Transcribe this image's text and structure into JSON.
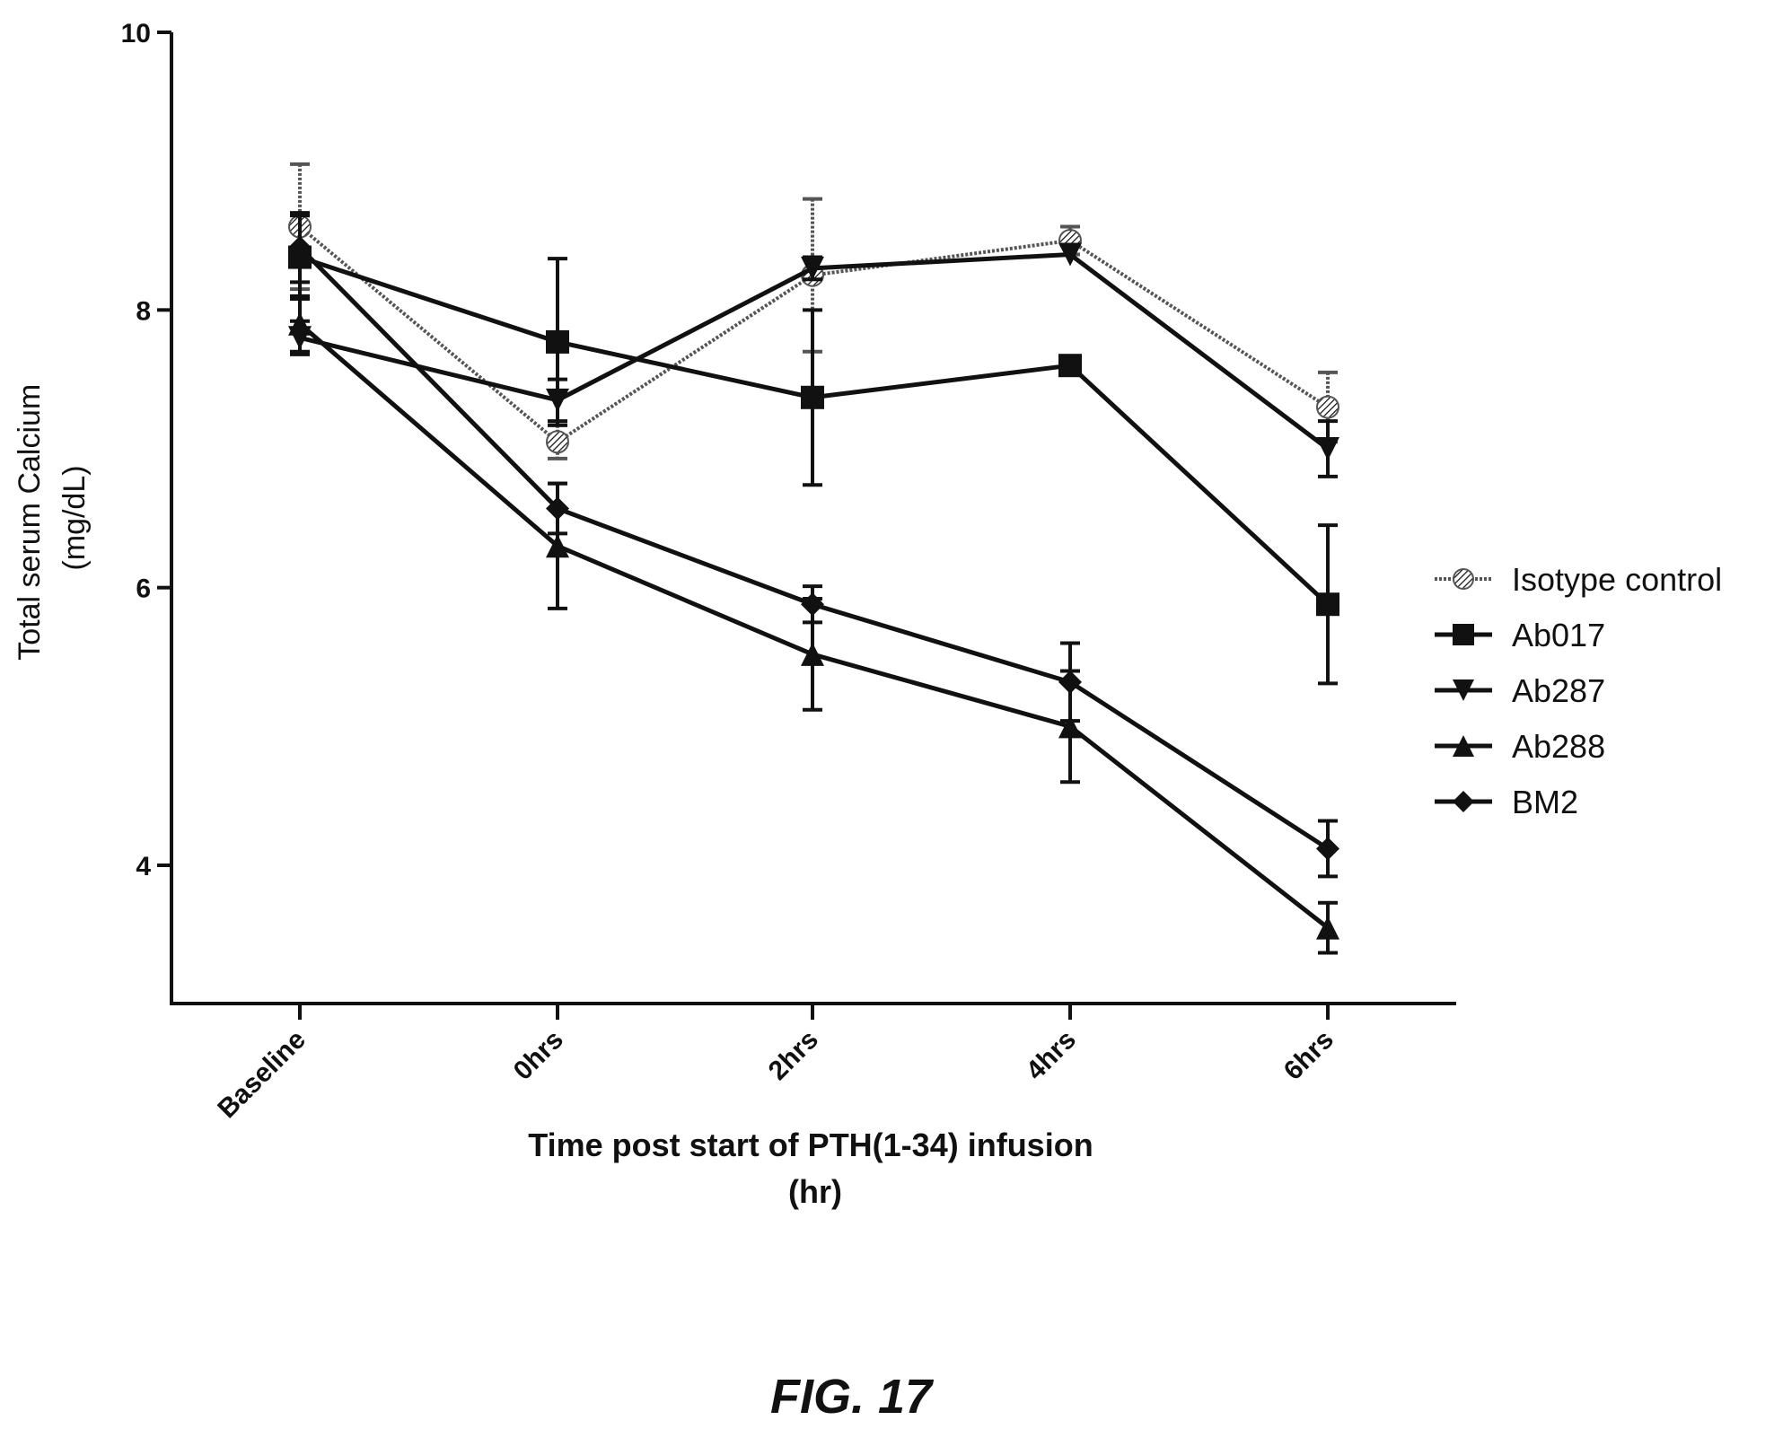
{
  "figure_label": "FIG. 17",
  "chart_data": {
    "type": "line",
    "ylabel_lines": [
      "Total serum Calcium",
      "(mg/dL)"
    ],
    "xlabel_lines": [
      "Time post start of PTH(1-34) infusion",
      "(hr)"
    ],
    "categories": [
      "Baseline",
      "0hrs",
      "2hrs",
      "4hrs",
      "6hrs"
    ],
    "ylim": [
      3,
      10
    ],
    "yticks": [
      4,
      6,
      8,
      10
    ],
    "grid": false,
    "legend_position": "right",
    "series": [
      {
        "name": "Isotype control",
        "marker": "hatched-circle",
        "dotted": true,
        "values": [
          8.6,
          7.05,
          8.25,
          8.5,
          7.3
        ],
        "errors": [
          0.45,
          0.12,
          0.55,
          0.1,
          0.25
        ]
      },
      {
        "name": "Ab017",
        "marker": "square",
        "dotted": false,
        "values": [
          8.38,
          7.77,
          7.37,
          7.6,
          5.88
        ],
        "errors": [
          0.3,
          0.6,
          0.63,
          0.0,
          0.57
        ]
      },
      {
        "name": "Ab287",
        "marker": "triangle-down",
        "dotted": false,
        "values": [
          7.8,
          7.35,
          8.3,
          8.4,
          7.0
        ],
        "errors": [
          0.12,
          0.15,
          0.08,
          0.0,
          0.2
        ]
      },
      {
        "name": "Ab288",
        "marker": "triangle-up",
        "dotted": false,
        "values": [
          7.9,
          6.3,
          5.52,
          5.0,
          3.55
        ],
        "errors": [
          0.2,
          0.45,
          0.4,
          0.4,
          0.18
        ]
      },
      {
        "name": "BM2",
        "marker": "diamond",
        "dotted": false,
        "values": [
          8.45,
          6.57,
          5.88,
          5.32,
          4.12
        ],
        "errors": [
          0.25,
          0.18,
          0.13,
          0.28,
          0.2
        ]
      }
    ]
  }
}
